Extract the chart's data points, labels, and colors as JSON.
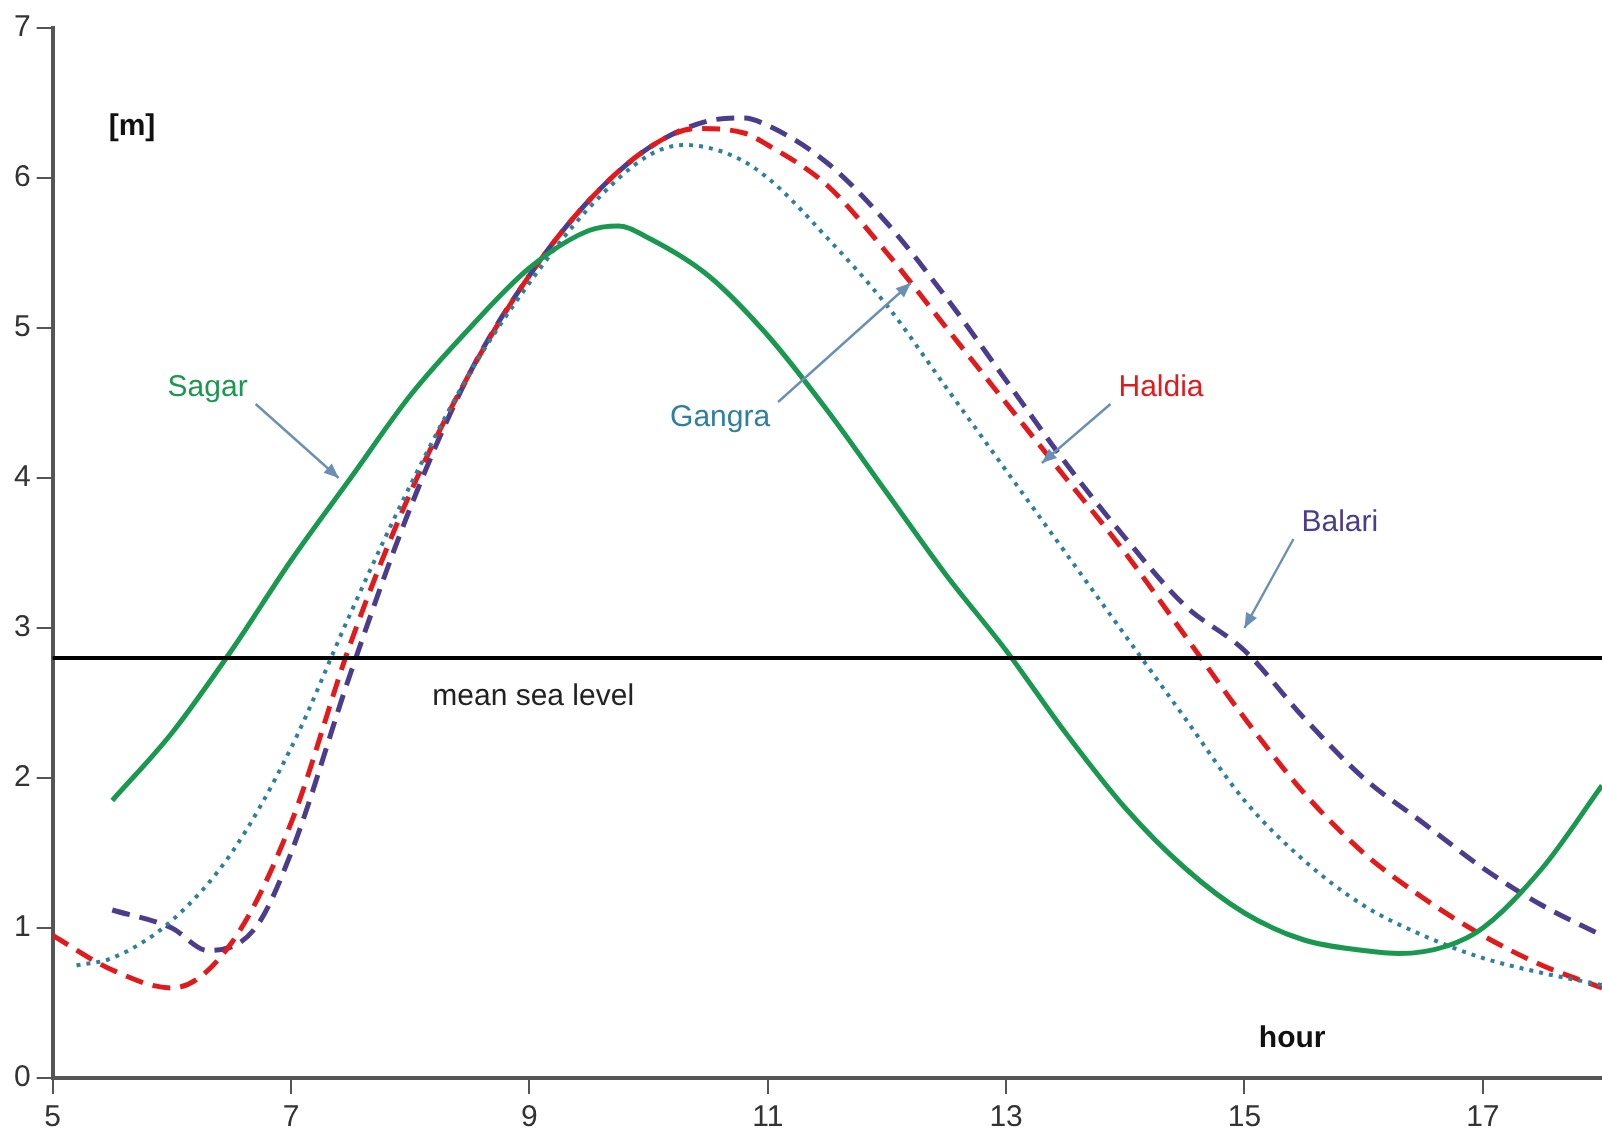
{
  "chart_data": {
    "type": "line",
    "xlabel": "hour",
    "ylabel": "[m]",
    "xlim": [
      5,
      18
    ],
    "xticks": [
      5,
      7,
      9,
      11,
      13,
      15,
      17
    ],
    "ylim": [
      0,
      7
    ],
    "yticks": [
      0,
      1,
      2,
      3,
      4,
      5,
      6,
      7
    ],
    "grid": false,
    "legend": false,
    "marker": "none",
    "ref_lines": [
      {
        "axis": "y",
        "value": 2.8,
        "label": "mean sea level",
        "color": "#000000"
      }
    ],
    "series": [
      {
        "name": "Sagar",
        "color": "#1a9850",
        "line_style": "solid",
        "x": [
          5.5,
          6,
          6.5,
          7,
          7.5,
          8,
          8.5,
          9,
          9.5,
          9.75,
          10,
          10.5,
          11,
          11.5,
          12,
          12.5,
          13,
          13.5,
          14,
          14.5,
          15,
          15.5,
          16,
          16.3,
          16.7,
          17,
          17.5,
          18
        ],
        "values": [
          1.85,
          2.3,
          2.85,
          3.45,
          4.0,
          4.55,
          5.0,
          5.4,
          5.65,
          5.68,
          5.6,
          5.35,
          4.95,
          4.45,
          3.9,
          3.35,
          2.85,
          2.3,
          1.8,
          1.4,
          1.1,
          0.92,
          0.85,
          0.83,
          0.88,
          1.0,
          1.4,
          1.95
        ]
      },
      {
        "name": "Gangra",
        "color": "#2e7fa0",
        "line_style": "dotted",
        "x": [
          5.2,
          5.5,
          6,
          6.5,
          7,
          7.5,
          8,
          8.5,
          9,
          9.5,
          10,
          10.3,
          10.7,
          11,
          11.5,
          12,
          12.5,
          13,
          13.5,
          14,
          14.5,
          15,
          15.5,
          16,
          16.5,
          17,
          17.5,
          18
        ],
        "values": [
          0.75,
          0.8,
          1.05,
          1.5,
          2.2,
          3.1,
          3.95,
          4.7,
          5.3,
          5.8,
          6.15,
          6.22,
          6.15,
          6.0,
          5.6,
          5.15,
          4.6,
          4.05,
          3.5,
          2.95,
          2.4,
          1.85,
          1.45,
          1.15,
          0.95,
          0.8,
          0.7,
          0.62
        ]
      },
      {
        "name": "Haldia",
        "color": "#e31a1c",
        "line_style": "dashed",
        "x": [
          5,
          5.5,
          6,
          6.5,
          7,
          7.5,
          8,
          8.5,
          9,
          9.5,
          10,
          10.4,
          10.8,
          11,
          11.5,
          12,
          12.5,
          13,
          13.5,
          14,
          14.5,
          15,
          15.5,
          16,
          16.5,
          17,
          17.5,
          18
        ],
        "values": [
          0.95,
          0.72,
          0.6,
          0.9,
          1.7,
          2.9,
          3.9,
          4.7,
          5.35,
          5.85,
          6.2,
          6.33,
          6.3,
          6.22,
          5.95,
          5.5,
          5.0,
          4.5,
          4.0,
          3.5,
          2.95,
          2.4,
          1.9,
          1.5,
          1.2,
          0.95,
          0.75,
          0.6
        ]
      },
      {
        "name": "Balari",
        "color": "#4b3c8c",
        "line_style": "dashed",
        "x": [
          5.5,
          6,
          6.3,
          6.7,
          7,
          7.5,
          8,
          8.5,
          9,
          9.5,
          10,
          10.5,
          10.8,
          11,
          11.5,
          12,
          12.5,
          13,
          13.5,
          14,
          14.5,
          15,
          15.5,
          16,
          16.5,
          17,
          17.5,
          18
        ],
        "values": [
          1.12,
          1.0,
          0.85,
          1.0,
          1.5,
          2.7,
          3.8,
          4.7,
          5.35,
          5.85,
          6.2,
          6.38,
          6.4,
          6.35,
          6.1,
          5.7,
          5.2,
          4.65,
          4.1,
          3.6,
          3.15,
          2.85,
          2.4,
          2.0,
          1.7,
          1.4,
          1.15,
          0.95
        ]
      }
    ]
  }
}
